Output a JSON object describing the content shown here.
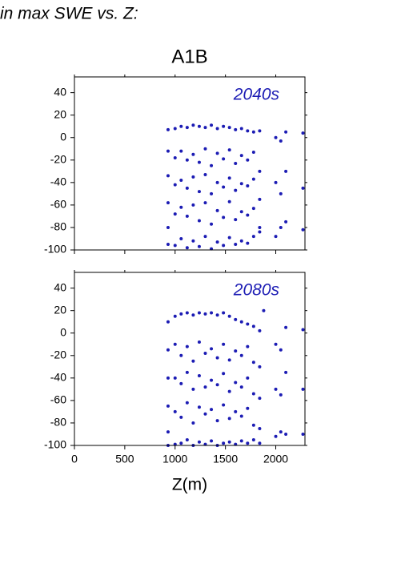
{
  "page_title": "in max SWE vs. Z:",
  "chart_data": [
    {
      "type": "scatter",
      "title": "A1B",
      "annotation": "2040s",
      "color": "#1c1cb4",
      "xlim": [
        0,
        2290
      ],
      "ylim": [
        -100,
        54
      ],
      "xticks": [
        0,
        500,
        1000,
        1500,
        2000
      ],
      "yticks": [
        -100,
        -80,
        -60,
        -40,
        -20,
        0,
        20,
        40
      ],
      "x": [
        930,
        930,
        930,
        930,
        930,
        930,
        1000,
        1000,
        1000,
        1000,
        1000,
        1060,
        1060,
        1060,
        1060,
        1060,
        1120,
        1120,
        1120,
        1120,
        1120,
        1180,
        1180,
        1180,
        1180,
        1180,
        1240,
        1240,
        1240,
        1240,
        1240,
        1300,
        1300,
        1300,
        1300,
        1300,
        1360,
        1360,
        1360,
        1360,
        1360,
        1420,
        1420,
        1420,
        1420,
        1420,
        1480,
        1480,
        1480,
        1480,
        1480,
        1540,
        1540,
        1540,
        1540,
        1540,
        1600,
        1600,
        1600,
        1600,
        1600,
        1660,
        1660,
        1660,
        1660,
        1660,
        1720,
        1720,
        1720,
        1720,
        1720,
        1780,
        1780,
        1780,
        1780,
        1780,
        1840,
        1840,
        1840,
        1840,
        1840,
        2000,
        2000,
        2000,
        2050,
        2050,
        2050,
        2100,
        2100,
        2100,
        2270,
        2270,
        2270
      ],
      "y": [
        7,
        -12,
        -34,
        -58,
        -80,
        -95,
        8,
        -18,
        -42,
        -68,
        -96,
        10,
        -12,
        -38,
        -62,
        -90,
        9,
        -20,
        -45,
        -70,
        -98,
        11,
        -15,
        -35,
        -60,
        -92,
        10,
        -22,
        -48,
        -74,
        -97,
        9,
        -10,
        -33,
        -58,
        -88,
        11,
        -25,
        -50,
        -77,
        -99,
        8,
        -14,
        -40,
        -65,
        -93,
        10,
        -19,
        -44,
        -71,
        -96,
        9,
        -11,
        -36,
        -57,
        -89,
        7,
        -23,
        -47,
        -73,
        -95,
        8,
        -16,
        -41,
        -66,
        -92,
        6,
        -20,
        -43,
        -69,
        -94,
        5,
        -13,
        -37,
        -63,
        -88,
        6,
        -30,
        -55,
        -80,
        -84,
        0,
        -40,
        -88,
        -3,
        -50,
        -80,
        5,
        -30,
        -75,
        4,
        -45,
        -82
      ]
    },
    {
      "type": "scatter",
      "annotation": "2080s",
      "color": "#1c1cb4",
      "x_label": "Z(m)",
      "xlim": [
        0,
        2290
      ],
      "ylim": [
        -100,
        54
      ],
      "xticks": [
        0,
        500,
        1000,
        1500,
        2000
      ],
      "yticks": [
        -100,
        -80,
        -60,
        -40,
        -20,
        0,
        20,
        40
      ],
      "x": [
        930,
        930,
        930,
        930,
        930,
        930,
        1000,
        1000,
        1000,
        1000,
        1000,
        1060,
        1060,
        1060,
        1060,
        1060,
        1120,
        1120,
        1120,
        1120,
        1120,
        1180,
        1180,
        1180,
        1180,
        1180,
        1240,
        1240,
        1240,
        1240,
        1240,
        1300,
        1300,
        1300,
        1300,
        1300,
        1360,
        1360,
        1360,
        1360,
        1360,
        1420,
        1420,
        1420,
        1420,
        1420,
        1480,
        1480,
        1480,
        1480,
        1480,
        1540,
        1540,
        1540,
        1540,
        1540,
        1600,
        1600,
        1600,
        1600,
        1600,
        1660,
        1660,
        1660,
        1660,
        1660,
        1720,
        1720,
        1720,
        1720,
        1720,
        1780,
        1780,
        1780,
        1780,
        1780,
        1840,
        1840,
        1840,
        1840,
        1840,
        1880,
        2000,
        2000,
        2000,
        2050,
        2050,
        2050,
        2100,
        2100,
        2100,
        2270,
        2270,
        2270
      ],
      "y": [
        10,
        -15,
        -40,
        -65,
        -88,
        -100,
        15,
        -10,
        -40,
        -70,
        -99,
        17,
        -20,
        -45,
        -75,
        -98,
        18,
        -12,
        -35,
        -62,
        -95,
        16,
        -25,
        -50,
        -80,
        -100,
        18,
        -8,
        -38,
        -66,
        -97,
        17,
        -18,
        -48,
        -72,
        -99,
        18,
        -14,
        -42,
        -68,
        -96,
        16,
        -22,
        -46,
        -78,
        -100,
        18,
        -10,
        -36,
        -64,
        -98,
        15,
        -24,
        -52,
        -76,
        -97,
        12,
        -16,
        -44,
        -70,
        -99,
        10,
        -20,
        -48,
        -74,
        -96,
        8,
        -12,
        -40,
        -67,
        -98,
        6,
        -26,
        -54,
        -82,
        -95,
        2,
        -30,
        -58,
        -85,
        -98,
        20,
        -10,
        -50,
        -92,
        -15,
        -55,
        -88,
        5,
        -35,
        -90,
        3,
        -50,
        -90
      ]
    }
  ]
}
